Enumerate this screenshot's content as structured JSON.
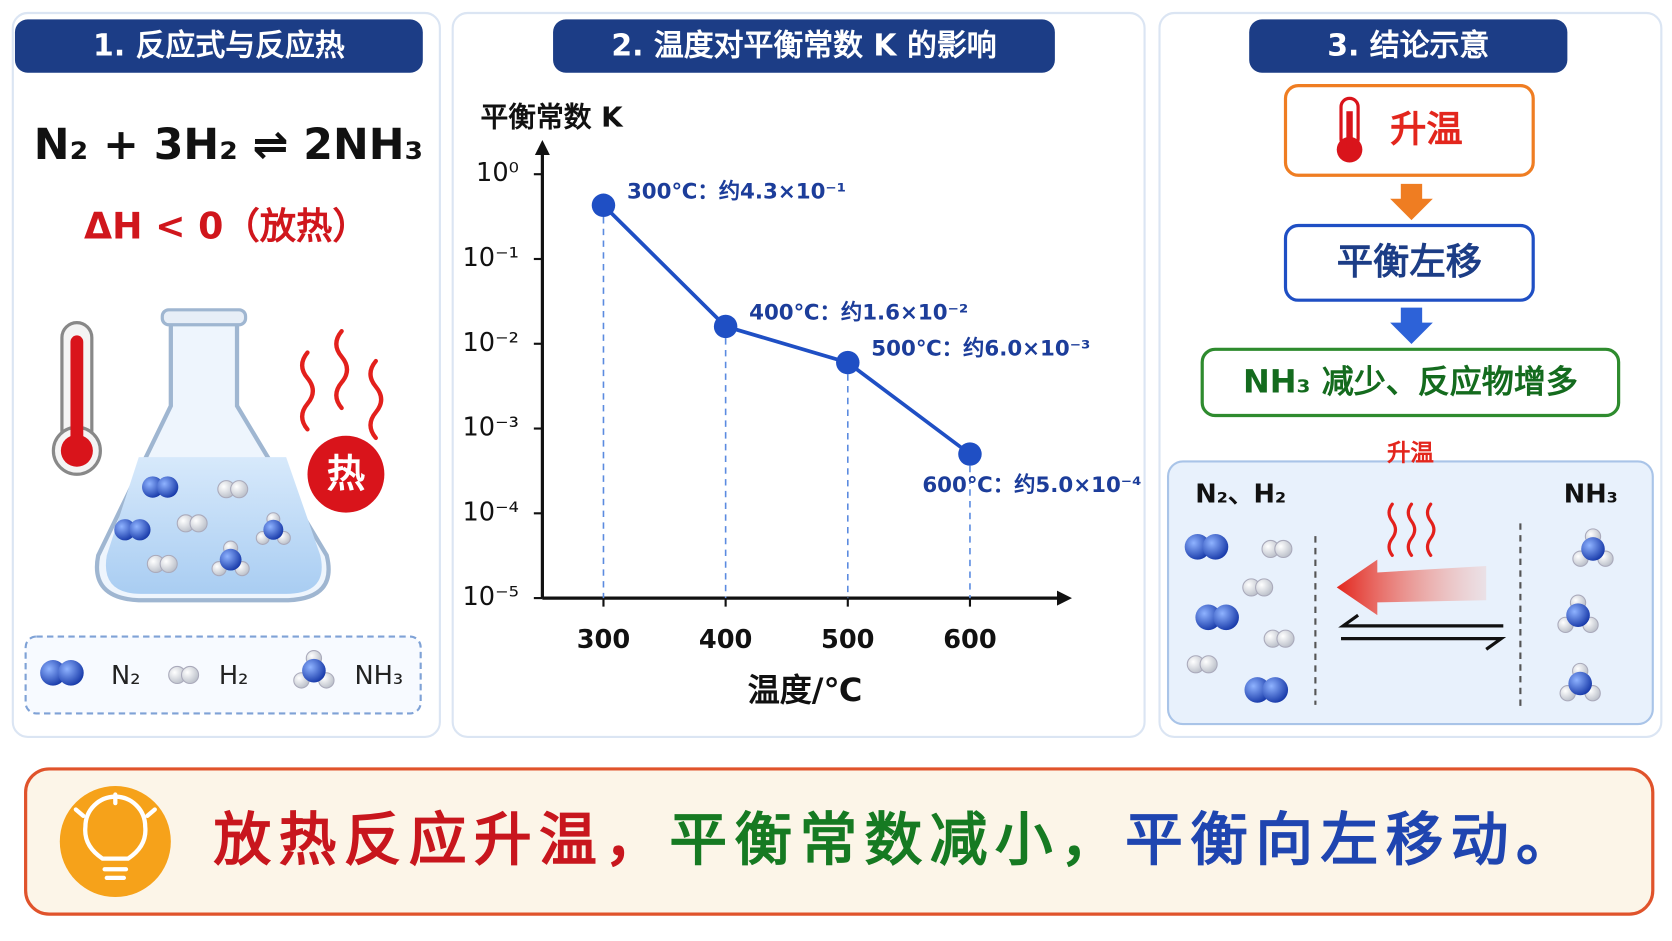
{
  "reaction_panel": {
    "title": "1. 反应式与反应热",
    "equation": "N₂ + 3H₂ ⇌ 2NH₃",
    "enthalpy": "ΔH < 0（放热）",
    "heat_badge": "热",
    "legend": [
      "N₂",
      "H₂",
      "NH₃"
    ]
  },
  "chart_data": {
    "type": "line",
    "title": "2. 温度对平衡常数 K 的影响",
    "y_label": "平衡常数 K",
    "x_label": "温度/℃",
    "x": [
      300,
      400,
      500,
      600
    ],
    "series": [
      {
        "color": "#1f4fc4",
        "values": [
          0.43,
          0.016,
          0.006,
          0.0005
        ],
        "value_labels": [
          "300℃：约4.3×10⁻¹",
          "400℃：约1.6×10⁻²",
          "500℃：约6.0×10⁻³",
          "600℃：约5.0×10⁻⁴"
        ]
      }
    ],
    "xlim": [
      250,
      680
    ],
    "xticks": [
      300,
      400,
      500,
      600
    ],
    "ylim": [
      1e-05,
      1
    ],
    "yticks": [
      {
        "value": 1,
        "label": "10⁰"
      },
      {
        "value": 0.1,
        "label": "10⁻¹"
      },
      {
        "value": 0.01,
        "label": "10⁻²"
      },
      {
        "value": 0.001,
        "label": "10⁻³"
      },
      {
        "value": 0.0001,
        "label": "10⁻⁴"
      },
      {
        "value": 1e-05,
        "label": "10⁻⁵"
      }
    ],
    "log_y": true,
    "guide_lines": true
  },
  "conclusion_panel": {
    "title": "3. 结论示意",
    "steps": [
      "升温",
      "平衡左移",
      "NH₃ 减少、反应物增多"
    ],
    "heat_label": "升温",
    "left_label": "N₂、H₂",
    "right_label": "NH₃"
  },
  "summary": {
    "parts": [
      {
        "text": "放热反应升温，",
        "color": "#c8161d"
      },
      {
        "text": "平衡常数减小，",
        "color": "#167a22"
      },
      {
        "text": "平衡向左移动。",
        "color": "#1f45b0"
      }
    ]
  }
}
